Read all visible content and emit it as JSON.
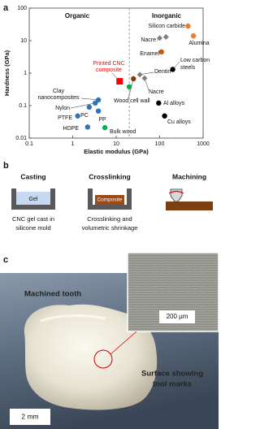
{
  "panel_labels": [
    "a",
    "b",
    "c"
  ],
  "chart_data": {
    "type": "scatter",
    "xlabel": "Elastic modulus (GPa)",
    "ylabel": "Hardness (GPa)",
    "xscale": "log",
    "yscale": "log",
    "xlim": [
      0.1,
      1000
    ],
    "ylim": [
      0.01,
      100
    ],
    "xticks": [
      0.1,
      1,
      10,
      100,
      1000
    ],
    "yticks": [
      0.01,
      0.1,
      1,
      10,
      100
    ],
    "region_divider_x": 20,
    "x": [
      450,
      600,
      100,
      140,
      110,
      200,
      35,
      45,
      12,
      25,
      20,
      95,
      130,
      3.9,
      3.3,
      2.4,
      3.9,
      1.3,
      2.2,
      5.5
    ],
    "y": [
      28,
      14,
      12,
      13,
      4.5,
      1.3,
      0.9,
      0.7,
      0.56,
      0.67,
      0.38,
      0.12,
      0.048,
      0.15,
      0.12,
      0.09,
      0.068,
      0.048,
      0.022,
      0.021
    ],
    "colors": [
      "#ed7d31",
      "#ed7d31",
      "#7f7f7f",
      "#7f7f7f",
      "#c55a11",
      "#000000",
      "#7f7f7f",
      "#7f7f7f",
      "#ff0000",
      "#843c0c",
      "#00b050",
      "#000000",
      "#000000",
      "#2e75b6",
      "#2e75b6",
      "#2e75b6",
      "#2e75b6",
      "#2e75b6",
      "#2e75b6",
      "#00b050"
    ],
    "markers": [
      "circle",
      "circle",
      "diamond",
      "diamond",
      "circle",
      "circle",
      "diamond",
      "diamond",
      "square",
      "circle",
      "circle",
      "circle",
      "circle",
      "circle",
      "circle",
      "circle",
      "circle",
      "circle",
      "circle",
      "circle"
    ],
    "annotations": [
      {
        "text": "Organic",
        "color": "#111111"
      },
      {
        "text": "Inorganic",
        "color": "#111111"
      },
      {
        "text": "Silicon carbide",
        "color": "#111111"
      },
      {
        "text": "Alumina",
        "color": "#111111"
      },
      {
        "text": "Nacre",
        "color": "#111111"
      },
      {
        "text": "Enamel",
        "color": "#111111"
      },
      {
        "text": "Low carbon",
        "color": "#111111"
      },
      {
        "text": "steels",
        "color": "#111111"
      },
      {
        "text": "Printed CNC",
        "color": "#ff0000"
      },
      {
        "text": "composite",
        "color": "#ff0000"
      },
      {
        "text": "Dentin",
        "color": "#111111"
      },
      {
        "text": "Clay",
        "color": "#111111"
      },
      {
        "text": "nanocomposites",
        "color": "#111111"
      },
      {
        "text": "Nylon",
        "color": "#111111"
      },
      {
        "text": "PC",
        "color": "#111111"
      },
      {
        "text": "PP",
        "color": "#111111"
      },
      {
        "text": "PTFE",
        "color": "#111111"
      },
      {
        "text": "HDPE",
        "color": "#111111"
      },
      {
        "text": "Bulk wood",
        "color": "#111111"
      },
      {
        "text": "Wood cell wall",
        "color": "#111111"
      },
      {
        "text": "Nacre",
        "color": "#111111"
      },
      {
        "text": "Al alloys",
        "color": "#111111"
      },
      {
        "text": "Cu alloys",
        "color": "#111111"
      }
    ]
  },
  "process": {
    "steps": [
      {
        "title": "Casting",
        "inner_label": "Gel",
        "caption": [
          "CNC gel cast in",
          "silicone mold"
        ]
      },
      {
        "title": "Crosslinking",
        "inner_label": "Composite",
        "caption": [
          "Crosslinking and",
          "volumetric shrinkage"
        ]
      },
      {
        "title": "Machining"
      }
    ]
  },
  "photo": {
    "title": "Machined tooth",
    "inset_scale": "200 μm",
    "callout": [
      "Surface showing",
      "tool marks"
    ],
    "scale": "2 mm"
  }
}
